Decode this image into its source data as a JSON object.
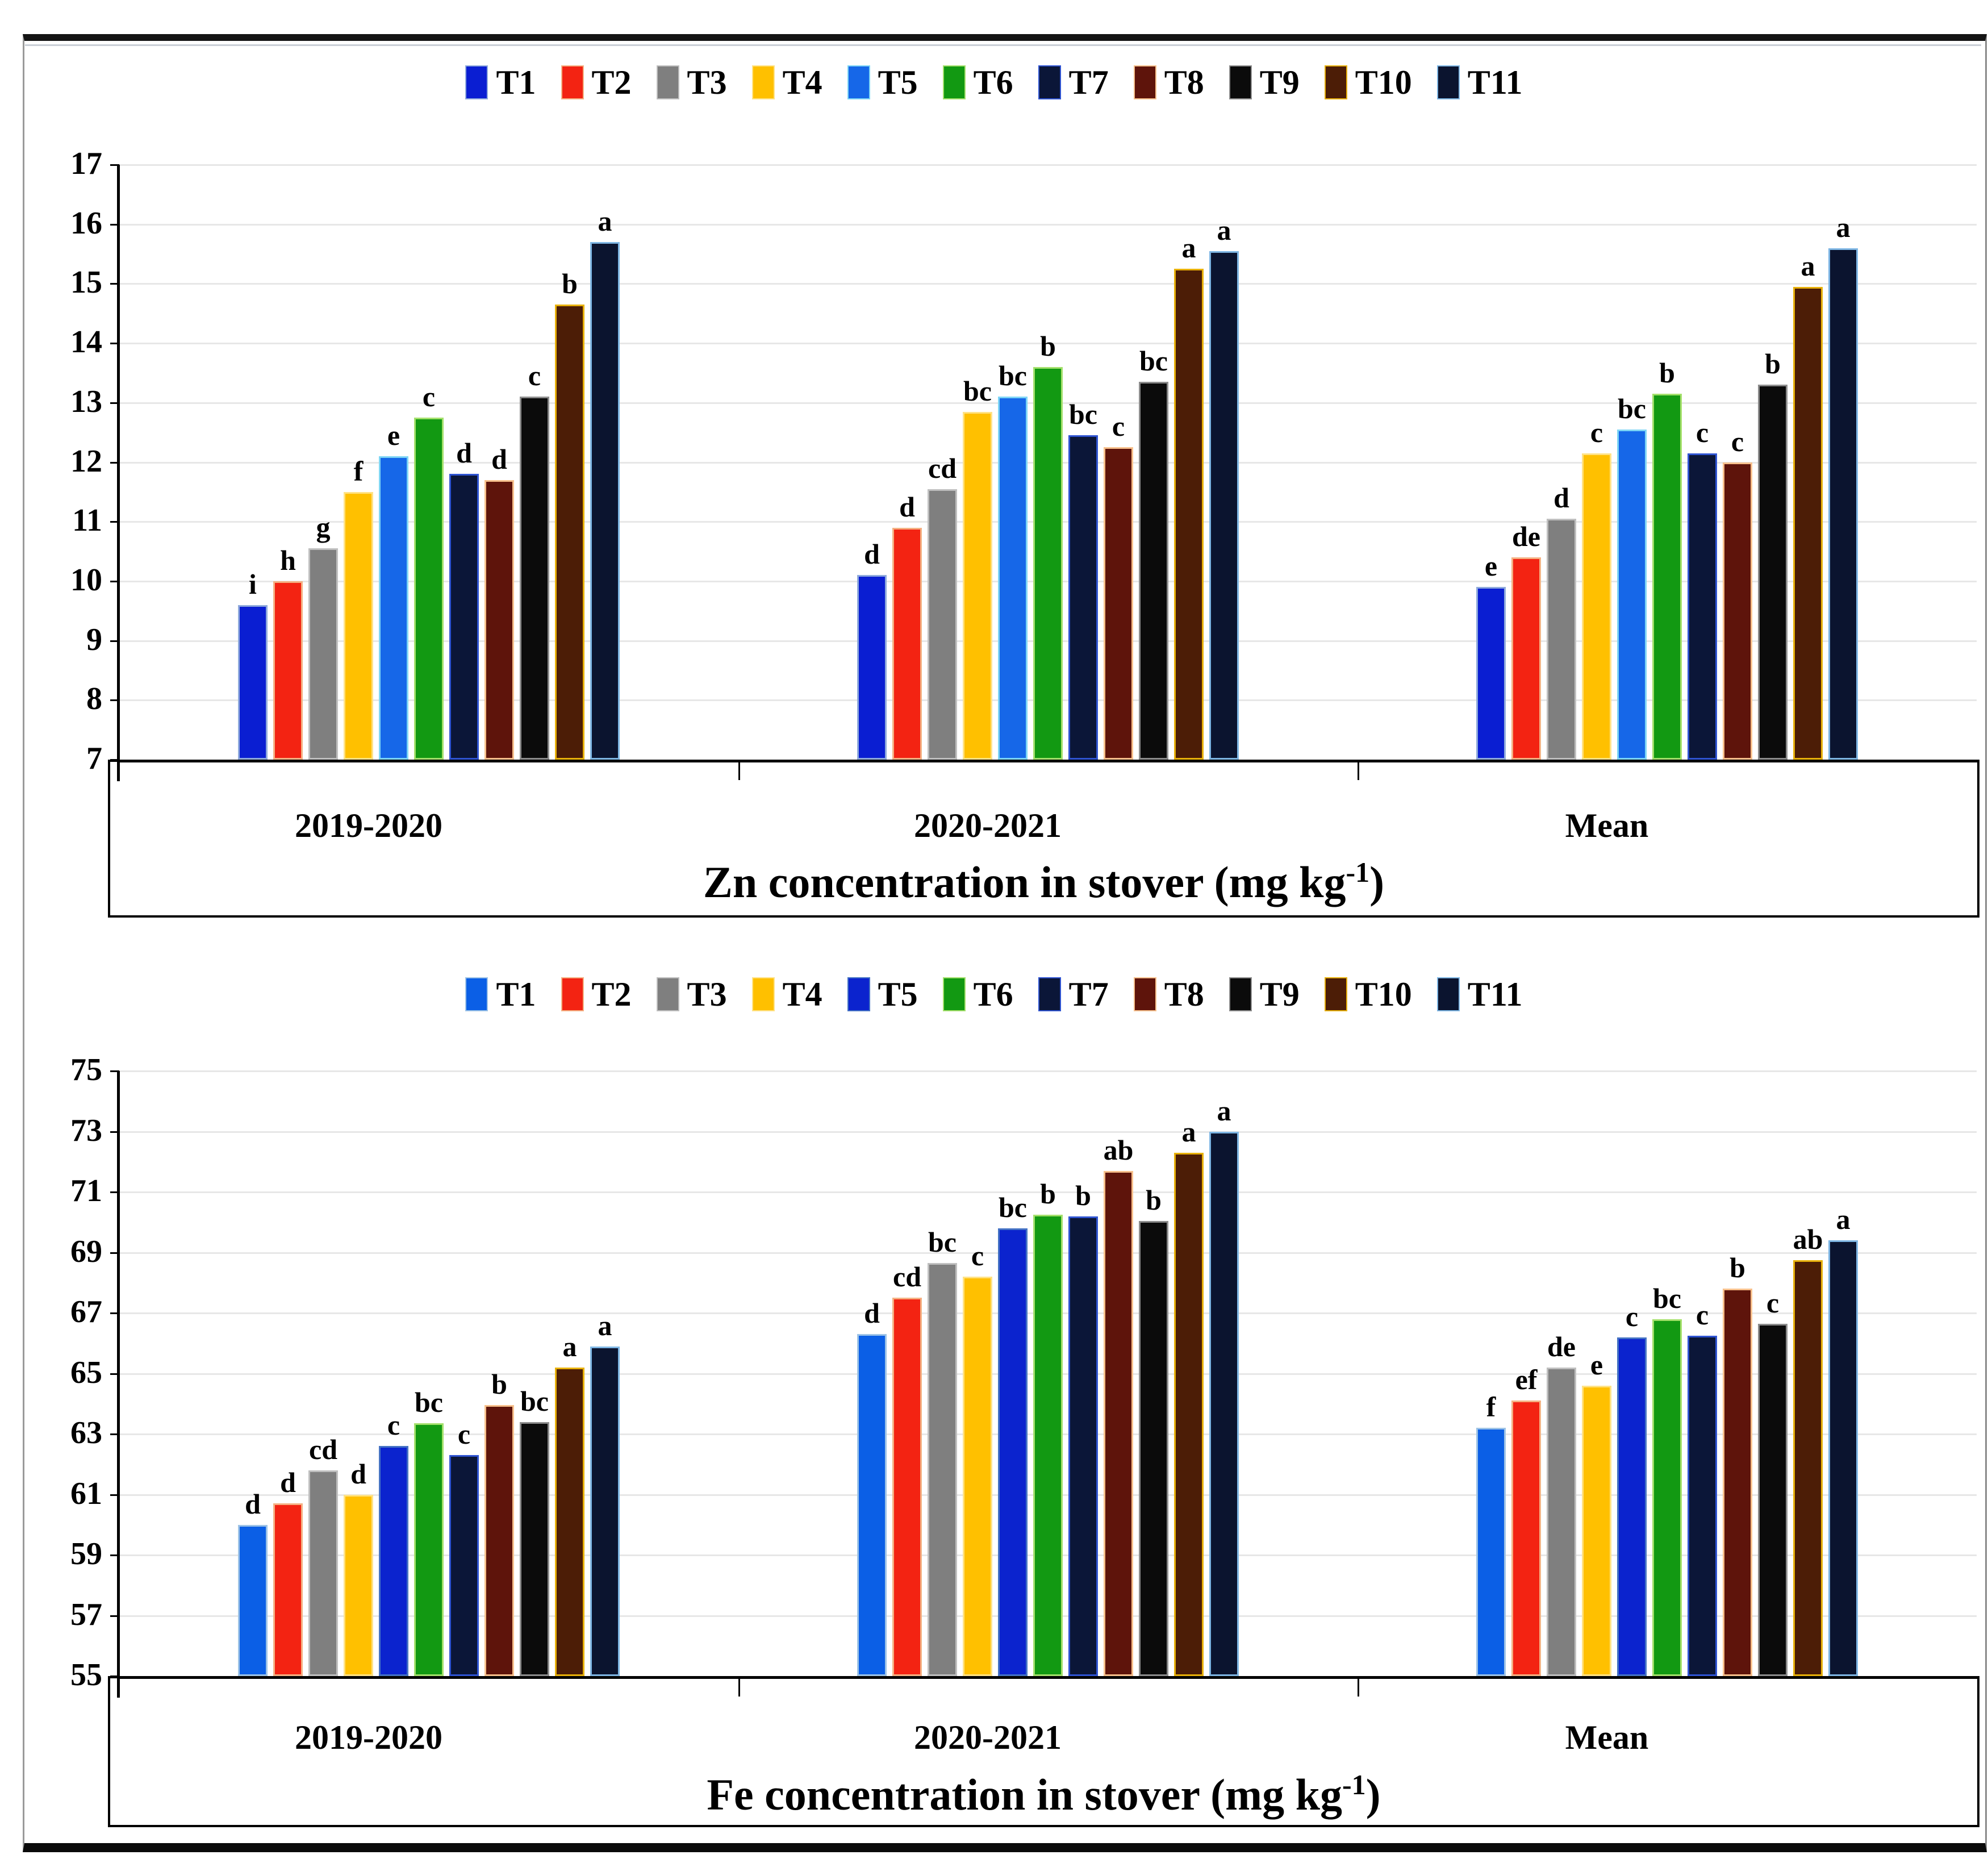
{
  "chart_data": [
    {
      "type": "bar",
      "title": "Zn concentration in stover (mg kg-1)",
      "title_parts": {
        "main": "Zn concentration in stover (mg kg",
        "sup": "-1",
        "end": ")"
      },
      "categories": [
        "2019-2020",
        "2020-2021",
        "Mean"
      ],
      "ylim": [
        7,
        17
      ],
      "ytick_step": 1,
      "yticks": [
        7,
        8,
        9,
        10,
        11,
        12,
        13,
        14,
        15,
        16,
        17
      ],
      "grid": true,
      "legend_position": "top-center",
      "series": [
        {
          "name": "T1",
          "color": "#0a1ed2",
          "border": "#8faadc",
          "values": [
            9.6,
            10.1,
            9.9
          ],
          "letters": [
            "i",
            "d",
            "e"
          ]
        },
        {
          "name": "T2",
          "color": "#f32312",
          "border": "#f4b183",
          "values": [
            10.0,
            10.9,
            10.4
          ],
          "letters": [
            "h",
            "d",
            "de"
          ]
        },
        {
          "name": "T3",
          "color": "#7f7f7f",
          "border": "#bfbfbf",
          "values": [
            10.55,
            11.55,
            11.05
          ],
          "letters": [
            "g",
            "cd",
            "d"
          ]
        },
        {
          "name": "T4",
          "color": "#ffc000",
          "border": "#ffe285",
          "values": [
            11.5,
            12.85,
            12.15
          ],
          "letters": [
            "f",
            "bc",
            "c"
          ]
        },
        {
          "name": "T5",
          "color": "#1667e8",
          "border": "#7dd5f5",
          "values": [
            12.1,
            13.1,
            12.55
          ],
          "letters": [
            "e",
            "bc",
            "bc"
          ]
        },
        {
          "name": "T6",
          "color": "#129912",
          "border": "#a4e06b",
          "values": [
            12.75,
            13.6,
            13.15
          ],
          "letters": [
            "c",
            "b",
            "b"
          ]
        },
        {
          "name": "T7",
          "color": "#0b1638",
          "border": "#2f54d2",
          "values": [
            11.8,
            12.45,
            12.15
          ],
          "letters": [
            "d",
            "bc",
            "c"
          ]
        },
        {
          "name": "T8",
          "color": "#5e140b",
          "border": "#f7c08c",
          "values": [
            11.7,
            12.25,
            12.0
          ],
          "letters": [
            "d",
            "c",
            "c"
          ]
        },
        {
          "name": "T9",
          "color": "#0b0b0b",
          "border": "#8c8c8c",
          "values": [
            13.1,
            13.35,
            13.3
          ],
          "letters": [
            "c",
            "bc",
            "b"
          ]
        },
        {
          "name": "T10",
          "color": "#4c1d06",
          "border": "#e8b10a",
          "values": [
            14.65,
            15.25,
            14.95
          ],
          "letters": [
            "b",
            "a",
            "a"
          ]
        },
        {
          "name": "T11",
          "color": "#0b142f",
          "border": "#7eb6e4",
          "values": [
            15.7,
            15.55,
            15.6
          ],
          "letters": [
            "a",
            "a",
            "a"
          ]
        }
      ]
    },
    {
      "type": "bar",
      "title": "Fe concentration in stover (mg kg-1)",
      "title_parts": {
        "main": "Fe concentration in stover (mg kg",
        "sup": "-1",
        "end": ")"
      },
      "categories": [
        "2019-2020",
        "2020-2021",
        "Mean"
      ],
      "ylim": [
        55,
        75
      ],
      "ytick_step": 2,
      "yticks": [
        55,
        57,
        59,
        61,
        63,
        65,
        67,
        69,
        71,
        73,
        75
      ],
      "grid": true,
      "legend_position": "top-center",
      "series": [
        {
          "name": "T1",
          "color": "#0b5fe6",
          "border": "#9dc3e6",
          "values": [
            60.0,
            66.3,
            63.2
          ],
          "letters": [
            "d",
            "d",
            "f"
          ]
        },
        {
          "name": "T2",
          "color": "#f32312",
          "border": "#f4b183",
          "values": [
            60.7,
            67.5,
            64.1
          ],
          "letters": [
            "d",
            "cd",
            "ef"
          ]
        },
        {
          "name": "T3",
          "color": "#7f7f7f",
          "border": "#bfbfbf",
          "values": [
            61.8,
            68.65,
            65.2
          ],
          "letters": [
            "cd",
            "bc",
            "de"
          ]
        },
        {
          "name": "T4",
          "color": "#ffc000",
          "border": "#ffe285",
          "values": [
            61.0,
            68.2,
            64.6
          ],
          "letters": [
            "d",
            "c",
            "e"
          ]
        },
        {
          "name": "T5",
          "color": "#0b23ce",
          "border": "#4472c4",
          "values": [
            62.6,
            69.8,
            66.2
          ],
          "letters": [
            "c",
            "bc",
            "c"
          ]
        },
        {
          "name": "T6",
          "color": "#129912",
          "border": "#a4e06b",
          "values": [
            63.35,
            70.25,
            66.8
          ],
          "letters": [
            "bc",
            "b",
            "bc"
          ]
        },
        {
          "name": "T7",
          "color": "#0b1638",
          "border": "#2f54d2",
          "values": [
            62.3,
            70.2,
            66.25
          ],
          "letters": [
            "c",
            "b",
            "c"
          ]
        },
        {
          "name": "T8",
          "color": "#5e140b",
          "border": "#f7c08c",
          "values": [
            63.95,
            71.7,
            67.8
          ],
          "letters": [
            "b",
            "ab",
            "b"
          ]
        },
        {
          "name": "T9",
          "color": "#0b0b0b",
          "border": "#8c8c8c",
          "values": [
            63.4,
            70.05,
            66.65
          ],
          "letters": [
            "bc",
            "b",
            "c"
          ]
        },
        {
          "name": "T10",
          "color": "#4c1d06",
          "border": "#e8b10a",
          "values": [
            65.2,
            72.3,
            68.75
          ],
          "letters": [
            "a",
            "a",
            "ab"
          ]
        },
        {
          "name": "T11",
          "color": "#0b142f",
          "border": "#7eb6e4",
          "values": [
            65.9,
            73.0,
            69.4
          ],
          "letters": [
            "a",
            "a",
            "a"
          ]
        }
      ]
    }
  ]
}
